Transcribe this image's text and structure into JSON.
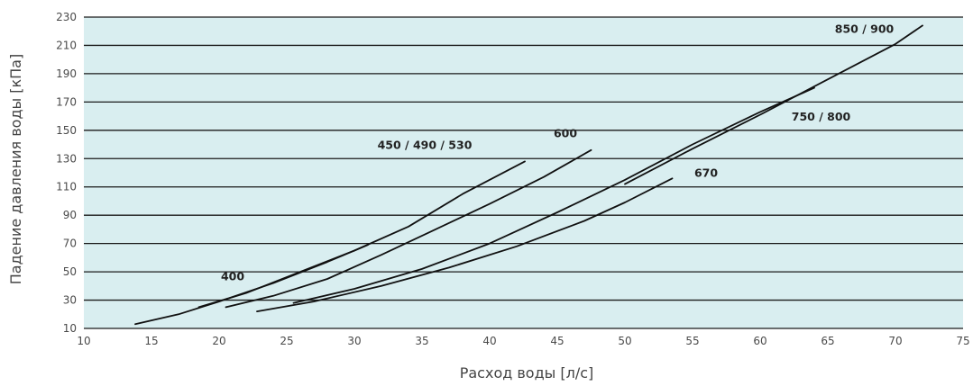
{
  "chart_data": {
    "type": "line",
    "title": "",
    "xlabel": "Расход воды [л/с]",
    "ylabel": "Падение давления воды [кПа]",
    "xlim": [
      10,
      75
    ],
    "ylim": [
      10,
      230
    ],
    "x_ticks": [
      "10",
      "15",
      "20",
      "25",
      "30",
      "35",
      "40",
      "45",
      "50",
      "55",
      "60",
      "65",
      "70",
      "75"
    ],
    "y_ticks": [
      "10",
      "30",
      "50",
      "70",
      "90",
      "110",
      "130",
      "150",
      "170",
      "190",
      "210",
      "230"
    ],
    "grid": "horizontal",
    "colors": {
      "plot_background": "#d9eef0",
      "grid": "#1a1a1a",
      "line": "#111111"
    },
    "series": [
      {
        "name": "400",
        "x": [
          13.8,
          17,
          20,
          24,
          28,
          31
        ],
        "y": [
          13,
          20,
          29,
          42,
          57,
          69
        ]
      },
      {
        "name": "450 / 490 / 530",
        "x": [
          18.5,
          22,
          26,
          30,
          34,
          38,
          42.6
        ],
        "y": [
          25,
          35,
          50,
          65,
          82,
          105,
          128
        ]
      },
      {
        "name": "600",
        "x": [
          20.5,
          24,
          28,
          32,
          36,
          40,
          44,
          47.5
        ],
        "y": [
          25,
          33,
          45,
          62,
          80,
          98,
          117,
          136
        ]
      },
      {
        "name": "670",
        "x": [
          22.8,
          27,
          32,
          37,
          42,
          47,
          50,
          53.5
        ],
        "y": [
          22,
          29,
          40,
          53,
          68,
          86,
          99,
          116
        ]
      },
      {
        "name": "750 / 800",
        "x": [
          25.5,
          30,
          35,
          40,
          45,
          50,
          55,
          60,
          64
        ],
        "y": [
          28,
          38,
          52,
          70,
          92,
          115,
          140,
          163,
          180
        ]
      },
      {
        "name": "850 / 900",
        "x": [
          50,
          55,
          60,
          65,
          70,
          72
        ],
        "y": [
          112,
          137,
          161,
          186,
          211,
          224
        ]
      }
    ],
    "label_positions": [
      {
        "series": "400",
        "x": 21,
        "y": 44
      },
      {
        "series": "450 / 490 / 530",
        "x": 35.2,
        "y": 137
      },
      {
        "series": "600",
        "x": 45.6,
        "y": 145
      },
      {
        "series": "670",
        "x": 56,
        "y": 117
      },
      {
        "series": "750 / 800",
        "x": 64.5,
        "y": 157
      },
      {
        "series": "850 / 900",
        "x": 67.7,
        "y": 219
      }
    ]
  }
}
